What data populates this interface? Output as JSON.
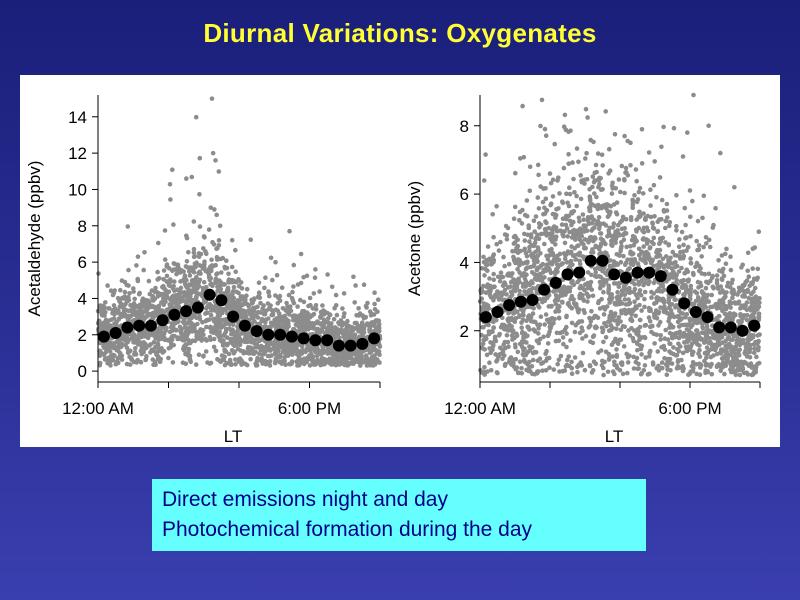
{
  "title": "Diurnal Variations: Oxygenates",
  "caption": {
    "line1": "Direct emissions night and day",
    "line2": "Photochemical formation during the day"
  },
  "colors": {
    "background": "#22278a",
    "title": "#ffff33",
    "caption_bg": "#66ffff",
    "caption_text": "#00008a",
    "scatter": "#8c8c8c",
    "mean": "#000000"
  },
  "chart_data": [
    {
      "type": "scatter",
      "title": "",
      "xlabel": "LT",
      "ylabel": "Acetaldehyde (ppbv)",
      "xlim": [
        0,
        24
      ],
      "ylim": [
        -0.6,
        15.2
      ],
      "x_ticks": [
        0,
        6,
        12,
        18,
        24
      ],
      "x_tick_labels": [
        "12:00 AM",
        "",
        "",
        "6:00 PM",
        ""
      ],
      "y_ticks": [
        0,
        2,
        4,
        6,
        8,
        10,
        12,
        14
      ],
      "y_tick_labels": [
        "0",
        "2",
        "4",
        "6",
        "8",
        "10",
        "12",
        "14"
      ],
      "series": [
        {
          "name": "hourly mean",
          "x": [
            0.5,
            1.5,
            2.5,
            3.5,
            4.5,
            5.5,
            6.5,
            7.5,
            8.5,
            9.5,
            10.5,
            11.5,
            12.5,
            13.5,
            14.5,
            15.5,
            16.5,
            17.5,
            18.5,
            19.5,
            20.5,
            21.5,
            22.5,
            23.5
          ],
          "values": [
            1.9,
            2.1,
            2.4,
            2.5,
            2.5,
            2.8,
            3.1,
            3.3,
            3.5,
            4.2,
            3.9,
            3.0,
            2.5,
            2.2,
            2.0,
            2.0,
            1.9,
            1.8,
            1.7,
            1.7,
            1.4,
            1.4,
            1.5,
            1.8
          ]
        }
      ],
      "scatter_spread": [
        1.1,
        1.1,
        1.2,
        1.3,
        1.3,
        1.4,
        1.5,
        1.6,
        1.8,
        2.0,
        1.9,
        1.6,
        1.4,
        1.3,
        1.3,
        1.3,
        1.2,
        1.2,
        1.1,
        1.1,
        1.0,
        1.0,
        1.0,
        1.1
      ],
      "outliers": [
        {
          "x": 9.7,
          "y": 15.0
        },
        {
          "x": 9.8,
          "y": 12.0
        },
        {
          "x": 10.0,
          "y": 11.6
        },
        {
          "x": 9.6,
          "y": 9.0
        },
        {
          "x": 10.1,
          "y": 8.6
        },
        {
          "x": 10.4,
          "y": 8.0
        },
        {
          "x": 9.9,
          "y": 8.9
        },
        {
          "x": 10.3,
          "y": 7.2
        },
        {
          "x": 16.3,
          "y": 7.7
        },
        {
          "x": 18.5,
          "y": 5.6
        },
        {
          "x": 3.4,
          "y": 6.3
        }
      ]
    },
    {
      "type": "scatter",
      "title": "",
      "xlabel": "LT",
      "ylabel": "Acetone (ppbv)",
      "xlim": [
        0,
        24
      ],
      "ylim": [
        0.5,
        8.9
      ],
      "x_ticks": [
        0,
        6,
        12,
        18,
        24
      ],
      "x_tick_labels": [
        "12:00 AM",
        "",
        "",
        "6:00 PM",
        ""
      ],
      "y_ticks": [
        2,
        4,
        6,
        8
      ],
      "y_tick_labels": [
        "2",
        "4",
        "6",
        "8"
      ],
      "series": [
        {
          "name": "hourly mean",
          "x": [
            0.5,
            1.5,
            2.5,
            3.5,
            4.5,
            5.5,
            6.5,
            7.5,
            8.5,
            9.5,
            10.5,
            11.5,
            12.5,
            13.5,
            14.5,
            15.5,
            16.5,
            17.5,
            18.5,
            19.5,
            20.5,
            21.5,
            22.5,
            23.5
          ],
          "values": [
            2.4,
            2.55,
            2.75,
            2.85,
            2.9,
            3.2,
            3.4,
            3.65,
            3.7,
            4.05,
            4.05,
            3.65,
            3.55,
            3.7,
            3.7,
            3.6,
            3.2,
            2.8,
            2.55,
            2.4,
            2.1,
            2.1,
            2.0,
            2.15
          ]
        }
      ],
      "scatter_spread": [
        1.1,
        1.2,
        1.3,
        1.4,
        1.5,
        1.6,
        1.7,
        1.8,
        1.8,
        1.9,
        1.9,
        1.9,
        1.9,
        1.9,
        1.8,
        1.8,
        1.7,
        1.5,
        1.3,
        1.2,
        1.1,
        1.0,
        1.0,
        1.0
      ],
      "outliers": [
        {
          "x": 18.3,
          "y": 8.9
        },
        {
          "x": 19.6,
          "y": 8.0
        },
        {
          "x": 12.9,
          "y": 7.5
        },
        {
          "x": 20.6,
          "y": 7.2
        },
        {
          "x": 4.3,
          "y": 6.8
        },
        {
          "x": 6.0,
          "y": 6.6
        },
        {
          "x": 17.4,
          "y": 7.1
        },
        {
          "x": 13.9,
          "y": 6.9
        },
        {
          "x": 21.8,
          "y": 6.2
        }
      ]
    }
  ]
}
